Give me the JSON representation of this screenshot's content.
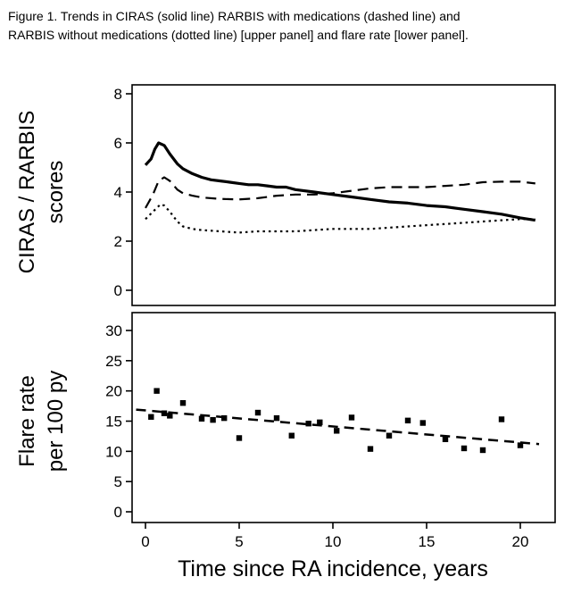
{
  "caption": {
    "line1": "Figure 1. Trends in CIRAS (solid line) RARBIS with medications (dashed line) and",
    "line2": "RARBIS without medications (dotted line) [upper panel] and flare rate [lower panel]."
  },
  "colors": {
    "foreground": "#000000",
    "background": "#ffffff"
  },
  "chart_data": [
    {
      "type": "line",
      "panel": "upper",
      "ylabel_lines": [
        "CIRAS / RARBIS",
        "scores"
      ],
      "ylim": [
        0,
        8
      ],
      "yticks": [
        0,
        2,
        4,
        6,
        8
      ],
      "xlim": [
        -1,
        21.8
      ],
      "xticks": [
        0,
        5,
        10,
        15,
        20
      ],
      "grid": false,
      "legend": "none (styles described in caption)",
      "series": [
        {
          "name": "CIRAS",
          "style": "solid",
          "x": [
            0,
            0.3,
            0.5,
            0.7,
            1,
            1.3,
            1.7,
            2,
            2.5,
            3,
            3.5,
            4,
            4.5,
            5,
            5.5,
            6,
            6.5,
            7,
            7.5,
            8,
            9,
            10,
            11,
            12,
            13,
            14,
            15,
            16,
            17,
            18,
            19,
            20,
            20.8
          ],
          "y": [
            5.1,
            5.35,
            5.75,
            6.0,
            5.9,
            5.55,
            5.15,
            4.95,
            4.75,
            4.6,
            4.5,
            4.45,
            4.4,
            4.35,
            4.3,
            4.3,
            4.25,
            4.2,
            4.2,
            4.1,
            4.0,
            3.9,
            3.8,
            3.7,
            3.6,
            3.55,
            3.45,
            3.4,
            3.3,
            3.2,
            3.1,
            2.95,
            2.85
          ]
        },
        {
          "name": "RARBIS with medications",
          "style": "dashed",
          "x": [
            0,
            0.4,
            0.7,
            1,
            1.3,
            1.7,
            2,
            2.5,
            3,
            4,
            5,
            6,
            7,
            8,
            9,
            10,
            11,
            12,
            13,
            14,
            15,
            16,
            17,
            18,
            19,
            20,
            20.8
          ],
          "y": [
            3.35,
            3.9,
            4.45,
            4.6,
            4.45,
            4.1,
            3.95,
            3.85,
            3.78,
            3.72,
            3.7,
            3.75,
            3.85,
            3.9,
            3.9,
            3.95,
            4.05,
            4.15,
            4.2,
            4.2,
            4.2,
            4.25,
            4.3,
            4.4,
            4.42,
            4.42,
            4.35
          ]
        },
        {
          "name": "RARBIS without medications",
          "style": "dotted",
          "x": [
            0,
            0.4,
            0.8,
            1,
            1.3,
            1.7,
            2,
            2.5,
            3,
            4,
            5,
            6,
            7,
            8,
            9,
            10,
            11,
            12,
            13,
            14,
            15,
            16,
            17,
            18,
            19,
            20,
            20.8
          ],
          "y": [
            2.9,
            3.2,
            3.5,
            3.45,
            3.2,
            2.8,
            2.6,
            2.5,
            2.45,
            2.4,
            2.35,
            2.4,
            2.4,
            2.4,
            2.45,
            2.5,
            2.5,
            2.5,
            2.55,
            2.6,
            2.65,
            2.7,
            2.75,
            2.8,
            2.85,
            2.9,
            2.9
          ]
        }
      ]
    },
    {
      "type": "scatter",
      "panel": "lower",
      "ylabel_lines": [
        "Flare rate",
        "per 100 py"
      ],
      "xlabel": "Time since RA incidence, years",
      "ylim": [
        0,
        30
      ],
      "yticks": [
        0,
        5,
        10,
        15,
        20,
        25,
        30
      ],
      "xlim": [
        -1,
        21.8
      ],
      "xticks": [
        0,
        5,
        10,
        15,
        20
      ],
      "grid": false,
      "points": {
        "x": [
          0.3,
          0.6,
          1.0,
          1.3,
          2.0,
          3.0,
          3.6,
          4.2,
          5.0,
          6.0,
          7.0,
          7.8,
          8.7,
          9.3,
          10.2,
          11.0,
          12.0,
          13.0,
          14.0,
          14.8,
          16.0,
          17.0,
          18.0,
          19.0,
          20.0
        ],
        "y": [
          15.7,
          20.0,
          16.3,
          15.9,
          18.0,
          15.4,
          15.2,
          15.5,
          12.2,
          16.4,
          15.5,
          12.6,
          14.6,
          14.8,
          13.4,
          15.6,
          10.4,
          12.6,
          15.1,
          14.7,
          12.0,
          10.5,
          10.2,
          15.3,
          11.0
        ]
      },
      "trend": {
        "name": "linear trend",
        "style": "trend",
        "x": [
          -0.5,
          21
        ],
        "y": [
          16.9,
          11.2
        ]
      }
    }
  ]
}
